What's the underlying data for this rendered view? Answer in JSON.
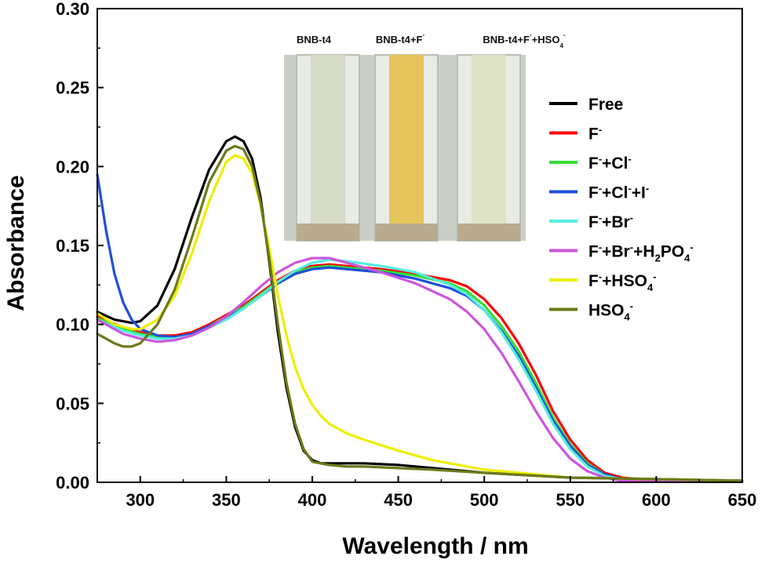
{
  "chart_data": {
    "type": "line",
    "xlabel": "Wavelength / nm",
    "ylabel": "Absorbance",
    "xlim": [
      275,
      650
    ],
    "ylim": [
      0,
      0.3
    ],
    "x_ticks": [
      300,
      350,
      400,
      450,
      500,
      550,
      600,
      650
    ],
    "y_ticks": [
      "0.00",
      "0.05",
      "0.10",
      "0.15",
      "0.20",
      "0.25",
      "0.30"
    ],
    "grid": false,
    "legend_position": "right",
    "series": [
      {
        "name": "Free",
        "legend": [
          "Free"
        ],
        "color": "#000000",
        "x": [
          275,
          285,
          295,
          300,
          310,
          320,
          330,
          340,
          350,
          355,
          360,
          365,
          370,
          375,
          380,
          385,
          390,
          395,
          400,
          405,
          410,
          420,
          430,
          450,
          470,
          500,
          550,
          600,
          650
        ],
        "y": [
          0.108,
          0.103,
          0.101,
          0.102,
          0.112,
          0.135,
          0.168,
          0.198,
          0.216,
          0.219,
          0.216,
          0.205,
          0.18,
          0.14,
          0.095,
          0.06,
          0.035,
          0.02,
          0.014,
          0.012,
          0.012,
          0.012,
          0.012,
          0.011,
          0.009,
          0.006,
          0.003,
          0.002,
          0.001
        ]
      },
      {
        "name": "F-",
        "legend": [
          "F",
          "-",
          ""
        ],
        "color": "#ff0000",
        "x": [
          275,
          290,
          300,
          310,
          320,
          330,
          340,
          350,
          360,
          370,
          380,
          390,
          400,
          410,
          420,
          440,
          460,
          480,
          490,
          500,
          510,
          520,
          530,
          540,
          550,
          560,
          570,
          580,
          600,
          650
        ],
        "y": [
          0.105,
          0.098,
          0.095,
          0.093,
          0.093,
          0.095,
          0.1,
          0.106,
          0.112,
          0.12,
          0.128,
          0.134,
          0.137,
          0.138,
          0.137,
          0.135,
          0.132,
          0.128,
          0.124,
          0.116,
          0.104,
          0.088,
          0.068,
          0.045,
          0.027,
          0.014,
          0.006,
          0.003,
          0.001,
          0.001
        ]
      },
      {
        "name": "F-+Cl-",
        "legend": [
          "F",
          "-",
          "+Cl",
          "-",
          ""
        ],
        "color": "#33dd33",
        "x": [
          275,
          290,
          300,
          310,
          320,
          330,
          340,
          350,
          360,
          370,
          380,
          390,
          400,
          410,
          420,
          440,
          460,
          480,
          490,
          500,
          510,
          520,
          530,
          540,
          550,
          560,
          570,
          580,
          600,
          650
        ],
        "y": [
          0.104,
          0.097,
          0.094,
          0.092,
          0.092,
          0.094,
          0.099,
          0.105,
          0.111,
          0.119,
          0.127,
          0.133,
          0.136,
          0.137,
          0.136,
          0.134,
          0.131,
          0.126,
          0.121,
          0.112,
          0.099,
          0.083,
          0.063,
          0.041,
          0.024,
          0.012,
          0.005,
          0.002,
          0.001,
          0.001
        ]
      },
      {
        "name": "F-+Cl-+I-",
        "legend": [
          "F",
          "-",
          "+Cl",
          "-",
          "+I",
          "-",
          ""
        ],
        "color": "#1e4fd8",
        "x": [
          275,
          280,
          285,
          290,
          295,
          300,
          310,
          320,
          330,
          340,
          350,
          360,
          370,
          380,
          390,
          400,
          410,
          420,
          440,
          460,
          480,
          490,
          500,
          510,
          520,
          530,
          540,
          550,
          560,
          570,
          580,
          600,
          650
        ],
        "y": [
          0.195,
          0.16,
          0.132,
          0.114,
          0.103,
          0.097,
          0.093,
          0.092,
          0.094,
          0.099,
          0.104,
          0.11,
          0.118,
          0.126,
          0.132,
          0.135,
          0.136,
          0.135,
          0.133,
          0.129,
          0.123,
          0.118,
          0.109,
          0.096,
          0.08,
          0.06,
          0.039,
          0.023,
          0.011,
          0.005,
          0.002,
          0.001,
          0.001
        ]
      },
      {
        "name": "F-+Br-",
        "legend": [
          "F",
          "-",
          "+Br",
          "-",
          ""
        ],
        "color": "#55eedd",
        "x": [
          275,
          290,
          300,
          310,
          320,
          330,
          340,
          350,
          360,
          370,
          380,
          390,
          400,
          410,
          420,
          440,
          460,
          480,
          490,
          500,
          510,
          520,
          530,
          540,
          550,
          560,
          570,
          580,
          600,
          650
        ],
        "y": [
          0.103,
          0.096,
          0.093,
          0.091,
          0.091,
          0.093,
          0.098,
          0.103,
          0.11,
          0.118,
          0.127,
          0.134,
          0.139,
          0.141,
          0.14,
          0.137,
          0.133,
          0.125,
          0.119,
          0.109,
          0.095,
          0.078,
          0.058,
          0.037,
          0.021,
          0.01,
          0.004,
          0.002,
          0.001,
          0.001
        ]
      },
      {
        "name": "F-+Br-+H2PO4-",
        "legend": [
          "F",
          "-",
          "+Br",
          "-",
          "+H",
          "2",
          "PO",
          "4",
          "-"
        ],
        "color": "#cc55dd",
        "x": [
          275,
          290,
          300,
          310,
          320,
          330,
          340,
          350,
          360,
          370,
          380,
          390,
          400,
          410,
          420,
          440,
          460,
          480,
          490,
          500,
          510,
          520,
          530,
          540,
          550,
          560,
          570,
          580,
          600,
          650
        ],
        "y": [
          0.103,
          0.094,
          0.091,
          0.089,
          0.09,
          0.093,
          0.098,
          0.105,
          0.114,
          0.124,
          0.133,
          0.139,
          0.142,
          0.142,
          0.139,
          0.133,
          0.126,
          0.116,
          0.108,
          0.097,
          0.082,
          0.064,
          0.045,
          0.028,
          0.015,
          0.007,
          0.003,
          0.001,
          0.001,
          0.001
        ]
      },
      {
        "name": "F-+HSO4-",
        "legend": [
          "F",
          "-",
          "+HSO",
          "4",
          "-"
        ],
        "color": "#eeee00",
        "x": [
          275,
          285,
          295,
          300,
          310,
          320,
          330,
          340,
          350,
          355,
          360,
          365,
          370,
          375,
          380,
          385,
          390,
          395,
          400,
          405,
          410,
          420,
          430,
          450,
          470,
          500,
          550,
          600,
          650
        ],
        "y": [
          0.107,
          0.1,
          0.097,
          0.097,
          0.103,
          0.118,
          0.145,
          0.178,
          0.203,
          0.207,
          0.205,
          0.196,
          0.175,
          0.148,
          0.118,
          0.093,
          0.073,
          0.059,
          0.049,
          0.042,
          0.037,
          0.031,
          0.027,
          0.02,
          0.014,
          0.008,
          0.003,
          0.002,
          0.001
        ]
      },
      {
        "name": "HSO4-",
        "legend": [
          "HSO",
          "4",
          "-"
        ],
        "color": "#6b7a1a",
        "x": [
          275,
          285,
          290,
          295,
          300,
          310,
          320,
          330,
          340,
          350,
          355,
          360,
          365,
          370,
          375,
          380,
          385,
          390,
          395,
          400,
          410,
          420,
          430,
          450,
          470,
          500,
          550,
          600,
          650
        ],
        "y": [
          0.094,
          0.088,
          0.086,
          0.086,
          0.088,
          0.1,
          0.122,
          0.155,
          0.19,
          0.21,
          0.213,
          0.211,
          0.2,
          0.177,
          0.142,
          0.1,
          0.063,
          0.037,
          0.021,
          0.013,
          0.011,
          0.01,
          0.01,
          0.009,
          0.008,
          0.006,
          0.003,
          0.002,
          0.001
        ]
      }
    ]
  },
  "inset": {
    "labels": [
      {
        "parts": [
          "BNB-t4"
        ]
      },
      {
        "parts": [
          "BNB-t4+F",
          "-"
        ]
      },
      {
        "parts": [
          "BNB-t4+F",
          "-",
          "+HSO",
          "4",
          "-"
        ]
      }
    ],
    "background_color": "#c9cfc4",
    "cuvette_colors": [
      "#d7dcc8",
      "#e5c55a",
      "#dfe3c6"
    ]
  }
}
